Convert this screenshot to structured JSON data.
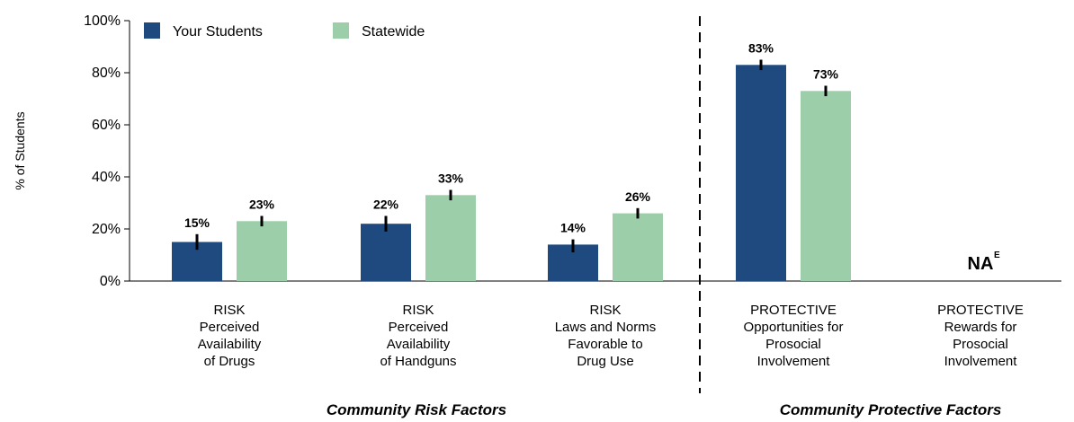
{
  "chart_data": {
    "type": "bar",
    "ylabel": "% of Students",
    "ylim": [
      0,
      100
    ],
    "yticks": [
      "0%",
      "20%",
      "40%",
      "60%",
      "80%",
      "100%"
    ],
    "categories": [
      [
        "RISK",
        "Perceived",
        "Availability",
        "of Drugs"
      ],
      [
        "RISK",
        "Perceived",
        "Availability",
        "of Handguns"
      ],
      [
        "RISK",
        "Laws and Norms",
        "Favorable to",
        "Drug Use"
      ],
      [
        "PROTECTIVE",
        "Opportunities for",
        "Prosocial",
        "Involvement"
      ],
      [
        "PROTECTIVE",
        "Rewards for",
        "Prosocial",
        "Involvement"
      ]
    ],
    "series": [
      {
        "name": "Your Students",
        "color": "#1f4a80",
        "values": [
          15,
          22,
          14,
          83,
          null
        ],
        "labels": [
          "15%",
          "22%",
          "14%",
          "83%",
          ""
        ],
        "error": [
          [
            12,
            18
          ],
          [
            19,
            25
          ],
          [
            11,
            16
          ],
          [
            81,
            85
          ],
          null
        ]
      },
      {
        "name": "Statewide",
        "color": "#9ccfa9",
        "values": [
          23,
          33,
          26,
          73,
          null
        ],
        "labels": [
          "23%",
          "33%",
          "26%",
          "73%",
          ""
        ],
        "error": [
          [
            21,
            25
          ],
          [
            31,
            35
          ],
          [
            24,
            28
          ],
          [
            71,
            75
          ],
          null
        ]
      }
    ],
    "groups": [
      {
        "label": "Community Risk Factors"
      },
      {
        "label": "Community Protective Factors"
      }
    ],
    "na_text": "NA",
    "na_superscript": "E",
    "legend_position": "top-left",
    "grid": false
  }
}
